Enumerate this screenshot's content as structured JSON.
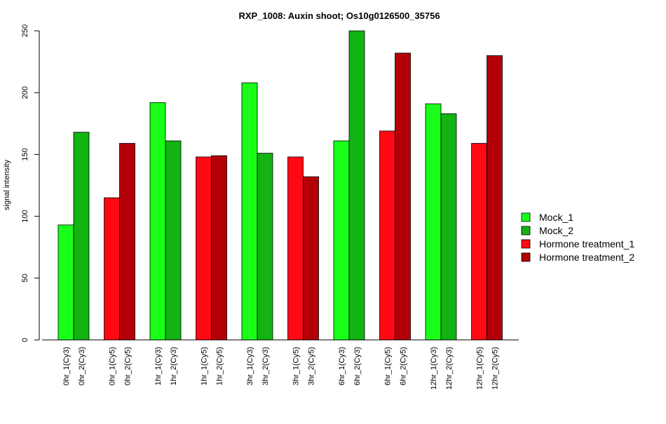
{
  "chart_data": {
    "type": "bar",
    "title": "RXP_1008: Auxin shoot; Os10g0126500_35756",
    "xlabel": "",
    "ylabel": "signal intensity",
    "ylim": [
      0,
      250
    ],
    "yticks": [
      0,
      50,
      100,
      150,
      200,
      250
    ],
    "grid": false,
    "legend_position": "right",
    "series_colors": {
      "Mock_1": "#19ff19",
      "Mock_2": "#12b312",
      "Hormone treatment_1": "#ff0a14",
      "Hormone treatment_2": "#b30008"
    },
    "legend": [
      "Mock_1",
      "Mock_2",
      "Hormone treatment_1",
      "Hormone treatment_2"
    ],
    "groups": [
      {
        "bars": [
          {
            "label": "0hr_1(Cy3)",
            "value": 93,
            "series": "Mock_1"
          },
          {
            "label": "0hr_2(Cy3)",
            "value": 168,
            "series": "Mock_2"
          }
        ]
      },
      {
        "bars": [
          {
            "label": "0hr_1(Cy5)",
            "value": 115,
            "series": "Hormone treatment_1"
          },
          {
            "label": "0hr_2(Cy5)",
            "value": 159,
            "series": "Hormone treatment_2"
          }
        ]
      },
      {
        "bars": [
          {
            "label": "1hr_1(Cy3)",
            "value": 192,
            "series": "Mock_1"
          },
          {
            "label": "1hr_2(Cy3)",
            "value": 161,
            "series": "Mock_2"
          }
        ]
      },
      {
        "bars": [
          {
            "label": "1hr_1(Cy5)",
            "value": 148,
            "series": "Hormone treatment_1"
          },
          {
            "label": "1hr_2(Cy5)",
            "value": 149,
            "series": "Hormone treatment_2"
          }
        ]
      },
      {
        "bars": [
          {
            "label": "3hr_1(Cy3)",
            "value": 208,
            "series": "Mock_1"
          },
          {
            "label": "3hr_2(Cy3)",
            "value": 151,
            "series": "Mock_2"
          }
        ]
      },
      {
        "bars": [
          {
            "label": "3hr_1(Cy5)",
            "value": 148,
            "series": "Hormone treatment_1"
          },
          {
            "label": "3hr_2(Cy5)",
            "value": 132,
            "series": "Hormone treatment_2"
          }
        ]
      },
      {
        "bars": [
          {
            "label": "6hr_1(Cy3)",
            "value": 161,
            "series": "Mock_1"
          },
          {
            "label": "6hr_2(Cy3)",
            "value": 250,
            "series": "Mock_2"
          }
        ]
      },
      {
        "bars": [
          {
            "label": "6hr_1(Cy5)",
            "value": 169,
            "series": "Hormone treatment_1"
          },
          {
            "label": "6hr_2(Cy5)",
            "value": 232,
            "series": "Hormone treatment_2"
          }
        ]
      },
      {
        "bars": [
          {
            "label": "12hr_1(Cy3)",
            "value": 191,
            "series": "Mock_1"
          },
          {
            "label": "12hr_2(Cy3)",
            "value": 183,
            "series": "Mock_2"
          }
        ]
      },
      {
        "bars": [
          {
            "label": "12hr_1(Cy5)",
            "value": 159,
            "series": "Hormone treatment_1"
          },
          {
            "label": "12hr_2(Cy5)",
            "value": 230,
            "series": "Hormone treatment_2"
          }
        ]
      }
    ]
  }
}
